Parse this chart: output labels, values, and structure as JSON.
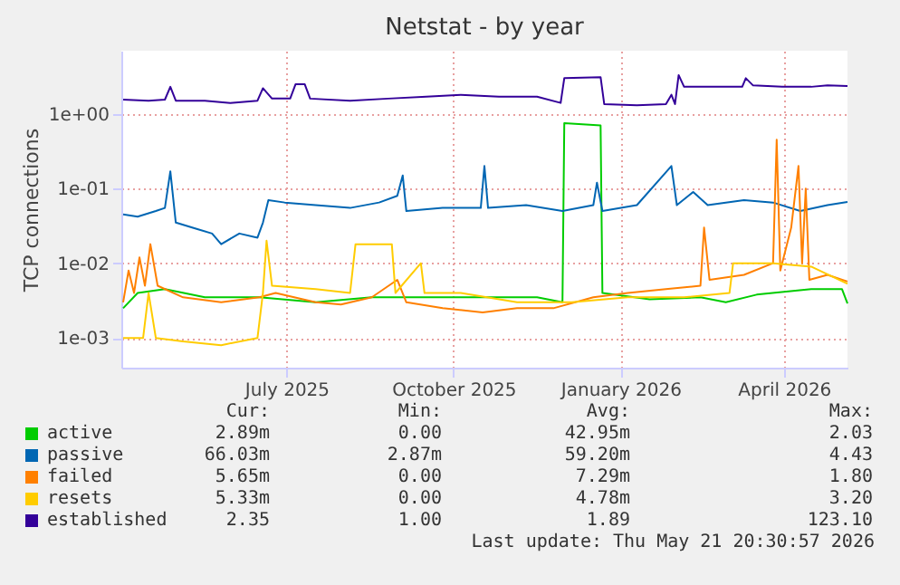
{
  "chart_data": {
    "type": "line",
    "title": "Netstat - by year",
    "ylabel": "TCP connections",
    "log": true,
    "grid": true,
    "legend": "bottom",
    "xlim": [
      "2025-04-16",
      "2026-05-21"
    ],
    "xticks": [
      {
        "value": "2025-07-16",
        "label": "July 2025"
      },
      {
        "value": "2025-10-16",
        "label": "October 2025"
      },
      {
        "value": "2026-01-16",
        "label": "January 2026"
      },
      {
        "value": "2026-04-16",
        "label": "April 2026"
      }
    ],
    "ylim": [
      0.0004,
      7
    ],
    "yticks": [
      {
        "value": 0.001,
        "label": "1e-03"
      },
      {
        "value": 0.01,
        "label": "1e-02"
      },
      {
        "value": 0.1,
        "label": "1e-01"
      },
      {
        "value": 1,
        "label": "1e+00"
      }
    ],
    "series": [
      {
        "name": "active",
        "color": "#00cc00",
        "x": [
          "2025-04-17",
          "2025-04-25",
          "2025-05-10",
          "2025-06-01",
          "2025-07-01",
          "2025-08-01",
          "2025-09-01",
          "2025-10-01",
          "2025-11-01",
          "2025-12-01",
          "2025-12-15",
          "2025-12-16",
          "2026-01-05",
          "2026-01-06",
          "2026-02-01",
          "2026-03-01",
          "2026-03-15",
          "2026-04-01",
          "2026-05-01",
          "2026-05-18",
          "2026-05-21"
        ],
        "values": [
          0.0025,
          0.004,
          0.0045,
          0.0035,
          0.0035,
          0.003,
          0.0035,
          0.0035,
          0.0035,
          0.0035,
          0.003,
          0.75,
          0.7,
          0.004,
          0.0033,
          0.0035,
          0.003,
          0.0038,
          0.0045,
          0.0045,
          0.0029
        ]
      },
      {
        "name": "passive",
        "color": "#0066b3",
        "x": [
          "2025-04-17",
          "2025-04-25",
          "2025-05-05",
          "2025-05-10",
          "2025-05-13",
          "2025-05-16",
          "2025-05-25",
          "2025-06-05",
          "2025-06-10",
          "2025-06-20",
          "2025-06-30",
          "2025-07-03",
          "2025-07-06",
          "2025-07-15",
          "2025-08-01",
          "2025-08-20",
          "2025-09-05",
          "2025-09-15",
          "2025-09-18",
          "2025-09-20",
          "2025-10-10",
          "2025-10-31",
          "2025-11-02",
          "2025-11-04",
          "2025-11-25",
          "2025-12-15",
          "2026-01-01",
          "2026-01-03",
          "2026-01-06",
          "2026-01-25",
          "2026-02-13",
          "2026-02-16",
          "2026-02-25",
          "2026-03-05",
          "2026-03-25",
          "2026-04-10",
          "2026-04-25",
          "2026-05-10",
          "2026-05-21"
        ],
        "values": [
          0.045,
          0.042,
          0.05,
          0.055,
          0.17,
          0.035,
          0.03,
          0.025,
          0.018,
          0.025,
          0.022,
          0.035,
          0.07,
          0.065,
          0.06,
          0.055,
          0.065,
          0.08,
          0.15,
          0.05,
          0.055,
          0.055,
          0.2,
          0.055,
          0.06,
          0.05,
          0.06,
          0.12,
          0.05,
          0.06,
          0.2,
          0.06,
          0.09,
          0.06,
          0.07,
          0.065,
          0.05,
          0.06,
          0.066
        ]
      },
      {
        "name": "failed",
        "color": "#ff8000",
        "x": [
          "2025-04-17",
          "2025-04-20",
          "2025-04-23",
          "2025-04-26",
          "2025-04-29",
          "2025-05-02",
          "2025-05-06",
          "2025-05-20",
          "2025-06-10",
          "2025-07-01",
          "2025-07-10",
          "2025-08-01",
          "2025-08-15",
          "2025-09-01",
          "2025-09-15",
          "2025-09-20",
          "2025-10-10",
          "2025-11-01",
          "2025-11-20",
          "2025-12-10",
          "2026-01-01",
          "2026-01-20",
          "2026-02-10",
          "2026-03-01",
          "2026-03-03",
          "2026-03-06",
          "2026-03-25",
          "2026-04-10",
          "2026-04-12",
          "2026-04-14",
          "2026-04-20",
          "2026-04-24",
          "2026-04-26",
          "2026-04-28",
          "2026-04-30",
          "2026-05-10",
          "2026-05-21"
        ],
        "values": [
          0.003,
          0.008,
          0.004,
          0.012,
          0.005,
          0.018,
          0.005,
          0.0035,
          0.003,
          0.0035,
          0.004,
          0.003,
          0.0028,
          0.0035,
          0.006,
          0.003,
          0.0025,
          0.0022,
          0.0025,
          0.0025,
          0.0035,
          0.004,
          0.0045,
          0.005,
          0.03,
          0.006,
          0.007,
          0.01,
          0.45,
          0.008,
          0.03,
          0.2,
          0.01,
          0.1,
          0.006,
          0.007,
          0.0057
        ]
      },
      {
        "name": "resets",
        "color": "#ffcc00",
        "x": [
          "2025-04-17",
          "2025-04-28",
          "2025-05-01",
          "2025-05-05",
          "2025-05-20",
          "2025-06-10",
          "2025-06-30",
          "2025-07-03",
          "2025-07-05",
          "2025-07-08",
          "2025-08-01",
          "2025-08-20",
          "2025-08-23",
          "2025-09-12",
          "2025-09-14",
          "2025-09-28",
          "2025-09-30",
          "2025-10-20",
          "2025-11-20",
          "2025-12-20",
          "2026-01-20",
          "2026-02-20",
          "2026-03-17",
          "2026-03-19",
          "2026-04-10",
          "2026-05-01",
          "2026-05-21"
        ],
        "values": [
          0.001,
          0.001,
          0.004,
          0.001,
          0.0009,
          0.0008,
          0.001,
          0.004,
          0.02,
          0.005,
          0.0045,
          0.004,
          0.018,
          0.018,
          0.004,
          0.01,
          0.004,
          0.004,
          0.003,
          0.003,
          0.0035,
          0.0035,
          0.004,
          0.01,
          0.01,
          0.009,
          0.0053
        ]
      },
      {
        "name": "established",
        "color": "#330099",
        "x": [
          "2025-04-17",
          "2025-05-01",
          "2025-05-10",
          "2025-05-13",
          "2025-05-16",
          "2025-06-01",
          "2025-06-15",
          "2025-06-30",
          "2025-07-03",
          "2025-07-08",
          "2025-07-18",
          "2025-07-21",
          "2025-07-26",
          "2025-07-29",
          "2025-08-20",
          "2025-09-10",
          "2025-10-01",
          "2025-10-20",
          "2025-11-10",
          "2025-12-01",
          "2025-12-14",
          "2025-12-16",
          "2026-01-05",
          "2026-01-07",
          "2026-01-25",
          "2026-02-10",
          "2026-02-13",
          "2026-02-15",
          "2026-02-17",
          "2026-02-20",
          "2026-03-10",
          "2026-03-24",
          "2026-03-26",
          "2026-03-30",
          "2026-04-15",
          "2026-05-01",
          "2026-05-10",
          "2026-05-21"
        ],
        "values": [
          1.55,
          1.5,
          1.55,
          2.3,
          1.5,
          1.5,
          1.4,
          1.5,
          2.2,
          1.6,
          1.6,
          2.5,
          2.5,
          1.6,
          1.5,
          1.6,
          1.7,
          1.8,
          1.7,
          1.7,
          1.4,
          3.0,
          3.1,
          1.35,
          1.3,
          1.35,
          1.8,
          1.35,
          3.3,
          2.3,
          2.3,
          2.3,
          3.0,
          2.4,
          2.3,
          2.3,
          2.4,
          2.35
        ]
      }
    ],
    "annotations": [
      "Cur:",
      "Min:",
      "Avg:",
      "Max:",
      "2.89m",
      "0.00",
      "42.95m",
      "2.03",
      "66.03m",
      "2.87m",
      "59.20m",
      "4.43",
      "5.65m",
      "0.00",
      "7.29m",
      "1.80",
      "5.33m",
      "0.00",
      "4.78m",
      "3.20",
      "2.35",
      "1.00",
      "1.89",
      "123.10",
      "Last update: Thu May 21 20:30:57 2026"
    ]
  }
}
